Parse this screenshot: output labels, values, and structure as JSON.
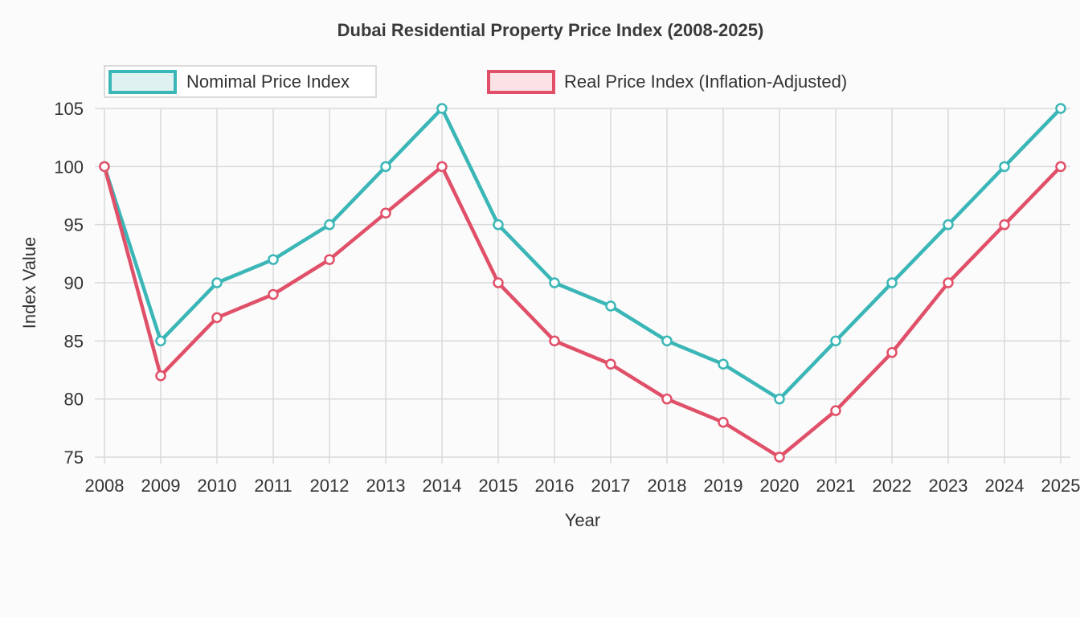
{
  "chart_data": {
    "type": "line",
    "title": "Dubai Residential Property Price Index (2008-2025)",
    "xlabel": "Year",
    "ylabel": "Index Value",
    "categories": [
      "2008",
      "2009",
      "2010",
      "2011",
      "2012",
      "2013",
      "2014",
      "2015",
      "2016",
      "2017",
      "2018",
      "2019",
      "2020",
      "2021",
      "2022",
      "2023",
      "2024",
      "2025"
    ],
    "ylim": [
      75,
      105
    ],
    "yticks": [
      "105",
      "100",
      "95",
      "90",
      "85",
      "80",
      "75"
    ],
    "grid": true,
    "legend_position": "top",
    "series": [
      {
        "name": "Nomimal Price Index",
        "color": "#3bb6b7",
        "values": [
          100,
          85,
          90,
          92,
          95,
          100,
          105,
          95,
          90,
          88,
          85,
          83,
          80,
          85,
          90,
          95,
          100,
          105
        ]
      },
      {
        "name": "Real Price Index (Inflation-Adjusted)",
        "color": "#e05068",
        "values": [
          100,
          82,
          87,
          89,
          92,
          96,
          100,
          90,
          85,
          83,
          80,
          78,
          75,
          79,
          84,
          90,
          95,
          100
        ]
      }
    ]
  }
}
